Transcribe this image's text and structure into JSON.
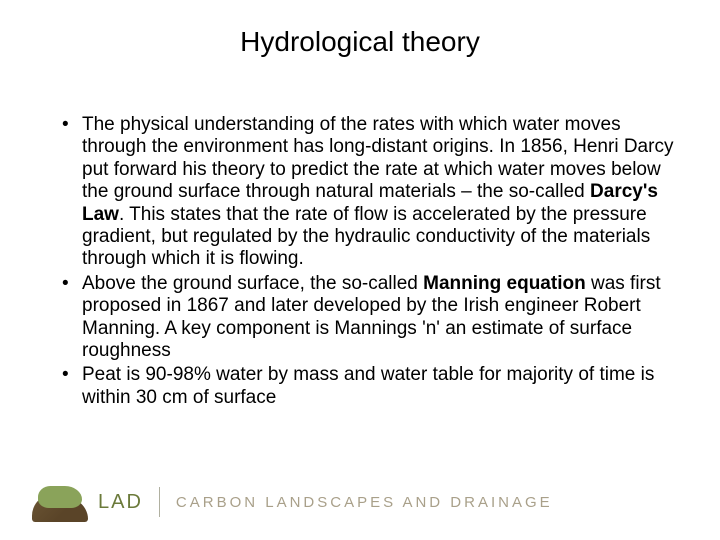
{
  "slide": {
    "title": "Hydrological theory",
    "title_fontsize": 28,
    "body_fontsize": 19,
    "text_color": "#000000",
    "background_color": "#ffffff",
    "bullets": [
      {
        "runs": [
          {
            "text": "The physical understanding of the rates with which water moves through the environment has long-distant origins. In 1856, Henri Darcy put forward his theory to predict the rate at which water moves below the ground surface through natural materials – the so-called ",
            "bold": false
          },
          {
            "text": "Darcy's Law",
            "bold": true
          },
          {
            "text": ". This states that the rate of flow is accelerated by the pressure gradient, but regulated by the hydraulic conductivity of the materials through which it is flowing.",
            "bold": false
          }
        ]
      },
      {
        "runs": [
          {
            "text": "Above the ground surface, the so-called ",
            "bold": false
          },
          {
            "text": "Manning equation",
            "bold": true
          },
          {
            "text": " was first proposed in 1867 and later developed by the Irish engineer Robert Manning. A key component is Mannings 'n' an estimate of surface roughness",
            "bold": false
          }
        ]
      },
      {
        "runs": [
          {
            "text": "Peat is 90-98% water by mass and water table for majority of time is within 30 cm of surface",
            "bold": false
          }
        ]
      }
    ]
  },
  "footer": {
    "logo_main": "LAD",
    "logo_sub": "CARBON LANDSCAPES AND DRAINAGE",
    "logo_main_color": "#6b7a3a",
    "logo_sub_color": "#a9a08a",
    "hill_color": "#6b5534",
    "green_color": "#8aa35a"
  }
}
